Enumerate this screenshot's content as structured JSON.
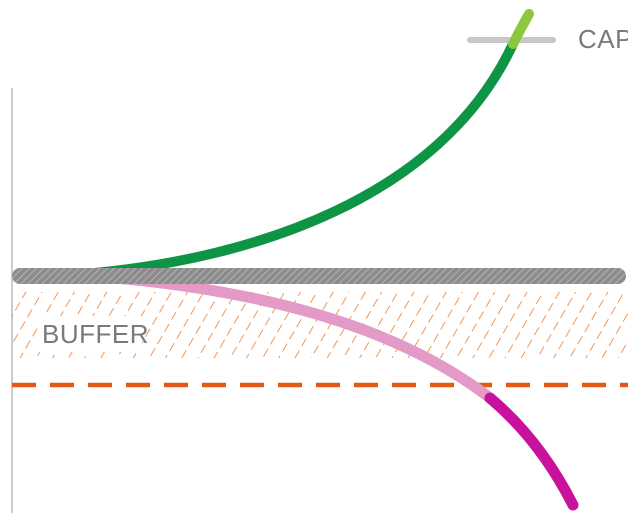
{
  "labels": {
    "cap": "CAP",
    "buffer": "BUFFER"
  },
  "colors": {
    "background": "#ffffff",
    "axis": "#cccccc",
    "baseline": "#8c8c8c",
    "baseline_hatch": "#b3b3b3",
    "buffer_hatch": "#f07a2a",
    "buffer_line": "#e35b12",
    "green_curve": "#0e9445",
    "green_tip": "#8dc63f",
    "pink_curve": "#e39ac6",
    "magenta_curve": "#c8129b",
    "cap_marker": "#c8c8c8",
    "label_text": "#7a7a7a"
  }
}
